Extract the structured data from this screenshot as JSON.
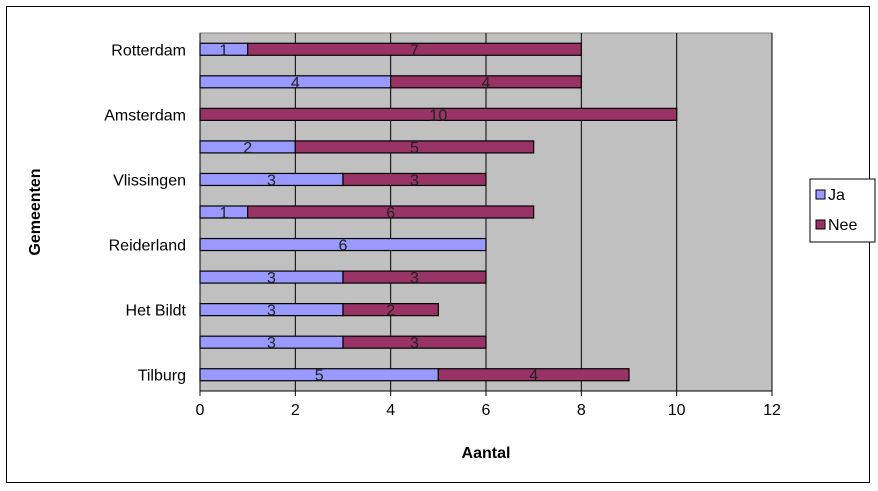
{
  "chart_data": {
    "type": "bar",
    "orientation": "horizontal",
    "stacked": true,
    "xlabel": "Aantal",
    "ylabel": "Gemeenten",
    "xlim": [
      0,
      12
    ],
    "xticks": [
      0,
      2,
      4,
      6,
      8,
      10,
      12
    ],
    "grid": true,
    "legend_position": "right",
    "category_labels_shown": [
      "Rotterdam",
      "",
      "Amsterdam",
      "",
      "Vlissingen",
      "",
      "Reiderland",
      "",
      "Het Bildt",
      "",
      "Tilburg"
    ],
    "series": [
      {
        "name": "Ja",
        "color": "#9999FF",
        "values": [
          1,
          4,
          0,
          2,
          3,
          1,
          6,
          3,
          3,
          3,
          5
        ]
      },
      {
        "name": "Nee",
        "color": "#993366",
        "values": [
          7,
          4,
          10,
          5,
          3,
          6,
          0,
          3,
          2,
          3,
          4
        ]
      }
    ],
    "plot_background": "#C0C0C0"
  }
}
